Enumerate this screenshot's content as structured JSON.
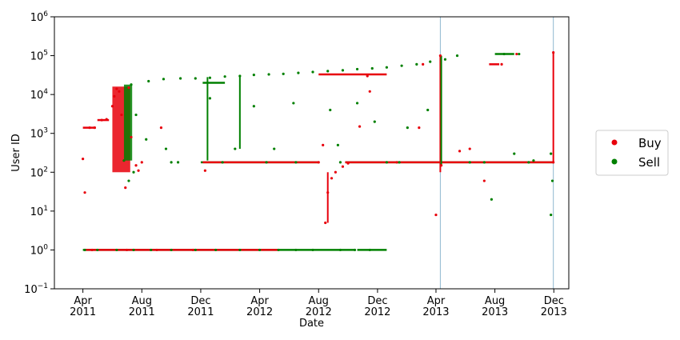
{
  "chart_data": {
    "type": "scatter",
    "xlabel": "Date",
    "ylabel": "User ID",
    "y_scale": "log",
    "ylim": [
      0.1,
      1000000
    ],
    "xlim": [
      "2011-02-01",
      "2014-01-01"
    ],
    "x_ticks": [
      {
        "date": "2011-04-01",
        "line1": "Apr",
        "line2": "2011"
      },
      {
        "date": "2011-08-01",
        "line1": "Aug",
        "line2": "2011"
      },
      {
        "date": "2011-12-01",
        "line1": "Dec",
        "line2": "2011"
      },
      {
        "date": "2012-04-01",
        "line1": "Apr",
        "line2": "2012"
      },
      {
        "date": "2012-08-01",
        "line1": "Aug",
        "line2": "2012"
      },
      {
        "date": "2012-12-01",
        "line1": "Dec",
        "line2": "2012"
      },
      {
        "date": "2013-04-01",
        "line1": "Apr",
        "line2": "2013"
      },
      {
        "date": "2013-08-01",
        "line1": "Aug",
        "line2": "2013"
      },
      {
        "date": "2013-12-01",
        "line1": "Dec",
        "line2": "2013"
      }
    ],
    "y_ticks": [
      {
        "value": 0.1,
        "base": "10",
        "exp": "−1"
      },
      {
        "value": 1,
        "base": "10",
        "exp": "0"
      },
      {
        "value": 10,
        "base": "10",
        "exp": "1"
      },
      {
        "value": 100,
        "base": "10",
        "exp": "2"
      },
      {
        "value": 1000,
        "base": "10",
        "exp": "3"
      },
      {
        "value": 10000,
        "base": "10",
        "exp": "4"
      },
      {
        "value": 100000,
        "base": "10",
        "exp": "5"
      },
      {
        "value": 1000000,
        "base": "10",
        "exp": "6"
      }
    ],
    "vertical_lines": [
      "2013-04-10",
      "2013-11-30"
    ],
    "grid": false,
    "legend": {
      "position": "outside-right"
    },
    "series": [
      {
        "name": "Buy",
        "color": "#e8000b",
        "points": [
          [
            "2011-04-01",
            220
          ],
          [
            "2011-04-05",
            30
          ],
          [
            "2011-04-15",
            1400
          ],
          [
            "2011-04-25",
            1400
          ],
          [
            "2011-05-10",
            2200
          ],
          [
            "2011-05-20",
            2300
          ],
          [
            "2011-06-01",
            5000
          ],
          [
            "2011-06-05",
            9000
          ],
          [
            "2011-06-10",
            14000
          ],
          [
            "2011-06-15",
            12000
          ],
          [
            "2011-06-20",
            3000
          ],
          [
            "2011-06-25",
            200
          ],
          [
            "2011-06-28",
            40
          ],
          [
            "2011-07-05",
            15000
          ],
          [
            "2011-07-10",
            800
          ],
          [
            "2011-07-20",
            150
          ],
          [
            "2011-07-25",
            110
          ],
          [
            "2011-08-01",
            180
          ],
          [
            "2011-09-10",
            1400
          ],
          [
            "2011-12-10",
            110
          ],
          [
            "2012-08-01",
            180
          ],
          [
            "2012-08-10",
            500
          ],
          [
            "2012-08-15",
            5
          ],
          [
            "2012-08-20",
            30
          ],
          [
            "2012-08-28",
            70
          ],
          [
            "2012-09-05",
            100
          ],
          [
            "2012-09-20",
            140
          ],
          [
            "2012-10-01",
            170
          ],
          [
            "2012-10-25",
            1500
          ],
          [
            "2012-11-10",
            30000
          ],
          [
            "2012-11-15",
            12000
          ],
          [
            "2013-01-10",
            180
          ],
          [
            "2013-02-25",
            1400
          ],
          [
            "2013-03-05",
            60000
          ],
          [
            "2013-04-01",
            8
          ],
          [
            "2013-04-10",
            100000
          ],
          [
            "2013-04-12",
            150
          ],
          [
            "2013-05-20",
            350
          ],
          [
            "2013-06-10",
            400
          ],
          [
            "2013-07-10",
            60
          ],
          [
            "2013-08-15",
            60000
          ],
          [
            "2013-09-15",
            110000
          ],
          [
            "2013-11-30",
            120000
          ],
          [
            "2013-11-30",
            180
          ],
          [
            "2011-04-20",
            1
          ],
          [
            "2011-07-01",
            1
          ],
          [
            "2011-09-01",
            1
          ],
          [
            "2011-11-15",
            1
          ]
        ]
      },
      {
        "name": "Sell",
        "color": "#008000",
        "points": [
          [
            "2011-04-05",
            1
          ],
          [
            "2011-05-01",
            1
          ],
          [
            "2011-06-10",
            1
          ],
          [
            "2011-07-15",
            1
          ],
          [
            "2011-08-20",
            1
          ],
          [
            "2011-10-01",
            1
          ],
          [
            "2011-11-20",
            1
          ],
          [
            "2012-01-01",
            1
          ],
          [
            "2012-02-20",
            1
          ],
          [
            "2012-04-01",
            1
          ],
          [
            "2012-05-10",
            1
          ],
          [
            "2012-06-15",
            1
          ],
          [
            "2012-07-20",
            1
          ],
          [
            "2012-09-15",
            1
          ],
          [
            "2012-10-15",
            1
          ],
          [
            "2012-11-15",
            1
          ],
          [
            "2011-07-10",
            18000
          ],
          [
            "2011-08-15",
            22000
          ],
          [
            "2011-09-15",
            25000
          ],
          [
            "2011-10-20",
            26000
          ],
          [
            "2011-11-20",
            26000
          ],
          [
            "2011-12-20",
            27000
          ],
          [
            "2012-01-20",
            29000
          ],
          [
            "2012-02-20",
            30000
          ],
          [
            "2012-03-20",
            32000
          ],
          [
            "2012-04-20",
            33000
          ],
          [
            "2012-05-20",
            34000
          ],
          [
            "2012-06-20",
            36000
          ],
          [
            "2012-07-20",
            38000
          ],
          [
            "2012-08-20",
            40000
          ],
          [
            "2012-09-20",
            42000
          ],
          [
            "2012-10-20",
            45000
          ],
          [
            "2012-11-20",
            47000
          ],
          [
            "2012-12-20",
            50000
          ],
          [
            "2013-01-20",
            55000
          ],
          [
            "2013-02-20",
            60000
          ],
          [
            "2013-03-20",
            70000
          ],
          [
            "2013-04-20",
            80000
          ],
          [
            "2013-05-15",
            100000
          ],
          [
            "2013-08-20",
            110000
          ],
          [
            "2013-09-20",
            110000
          ],
          [
            "2011-07-20",
            3000
          ],
          [
            "2011-08-10",
            700
          ],
          [
            "2011-09-20",
            400
          ],
          [
            "2011-10-15",
            180
          ],
          [
            "2011-12-20",
            8000
          ],
          [
            "2012-02-10",
            400
          ],
          [
            "2012-03-20",
            5000
          ],
          [
            "2012-05-01",
            400
          ],
          [
            "2012-06-10",
            6000
          ],
          [
            "2012-08-25",
            4000
          ],
          [
            "2012-09-10",
            500
          ],
          [
            "2012-10-20",
            6000
          ],
          [
            "2012-11-25",
            2000
          ],
          [
            "2012-12-20",
            180
          ],
          [
            "2013-02-01",
            1400
          ],
          [
            "2013-03-15",
            4000
          ],
          [
            "2013-06-10",
            180
          ],
          [
            "2013-07-25",
            20
          ],
          [
            "2013-09-10",
            300
          ],
          [
            "2013-10-20",
            200
          ],
          [
            "2013-11-25",
            8
          ],
          [
            "2013-11-25",
            300
          ],
          [
            "2013-11-28",
            60
          ],
          [
            "2011-07-05",
            60
          ],
          [
            "2011-07-15",
            100
          ],
          [
            "2011-06-25",
            200
          ],
          [
            "2011-10-01",
            180
          ],
          [
            "2012-01-15",
            180
          ],
          [
            "2012-04-15",
            180
          ],
          [
            "2012-06-15",
            180
          ],
          [
            "2012-09-15",
            180
          ],
          [
            "2013-01-15",
            180
          ],
          [
            "2013-07-10",
            180
          ],
          [
            "2013-10-10",
            180
          ]
        ]
      }
    ],
    "bands": [
      {
        "series": "Buy",
        "from": "2011-06-01",
        "to": "2011-07-08",
        "y_from": 100,
        "y_to": 16000
      },
      {
        "series": "Sell",
        "from": "2011-06-25",
        "to": "2011-07-12",
        "y_from": 200,
        "y_to": 18000
      }
    ],
    "horizontal_segments": [
      {
        "series": "Sell",
        "from": "2011-04-01",
        "to": "2012-10-15",
        "y": 1
      },
      {
        "series": "Buy",
        "from": "2011-04-05",
        "to": "2012-05-10",
        "y": 1
      },
      {
        "series": "Sell",
        "from": "2012-10-20",
        "to": "2012-12-20",
        "y": 1
      },
      {
        "series": "Sell",
        "from": "2011-12-01",
        "to": "2012-08-01",
        "y": 180
      },
      {
        "series": "Buy",
        "from": "2011-12-05",
        "to": "2012-08-01",
        "y": 180
      },
      {
        "series": "Sell",
        "from": "2012-09-25",
        "to": "2013-11-30",
        "y": 180
      },
      {
        "series": "Buy",
        "from": "2012-09-25",
        "to": "2013-11-30",
        "y": 180
      },
      {
        "series": "Buy",
        "from": "2012-08-01",
        "to": "2012-12-20",
        "y": 33000
      },
      {
        "series": "Buy",
        "from": "2011-05-01",
        "to": "2011-05-25",
        "y": 2200
      },
      {
        "series": "Buy",
        "from": "2011-04-01",
        "to": "2011-04-28",
        "y": 1400
      },
      {
        "series": "Sell",
        "from": "2011-12-05",
        "to": "2012-01-20",
        "y": 20000
      },
      {
        "series": "Sell",
        "from": "2013-08-01",
        "to": "2013-09-10",
        "y": 110000
      },
      {
        "series": "Buy",
        "from": "2013-07-20",
        "to": "2013-08-10",
        "y": 60000
      }
    ],
    "vertical_segments": [
      {
        "series": "Sell",
        "x": "2011-12-15",
        "y_from": 200,
        "y_to": 28000
      },
      {
        "series": "Sell",
        "x": "2012-02-20",
        "y_from": 400,
        "y_to": 30000
      },
      {
        "series": "Buy",
        "x": "2013-04-10",
        "y_from": 100,
        "y_to": 100000
      },
      {
        "series": "Sell",
        "x": "2013-04-12",
        "y_from": 150,
        "y_to": 100000
      },
      {
        "series": "Buy",
        "x": "2013-11-30",
        "y_from": 180,
        "y_to": 130000
      },
      {
        "series": "Buy",
        "x": "2012-08-20",
        "y_from": 5,
        "y_to": 100
      }
    ]
  }
}
